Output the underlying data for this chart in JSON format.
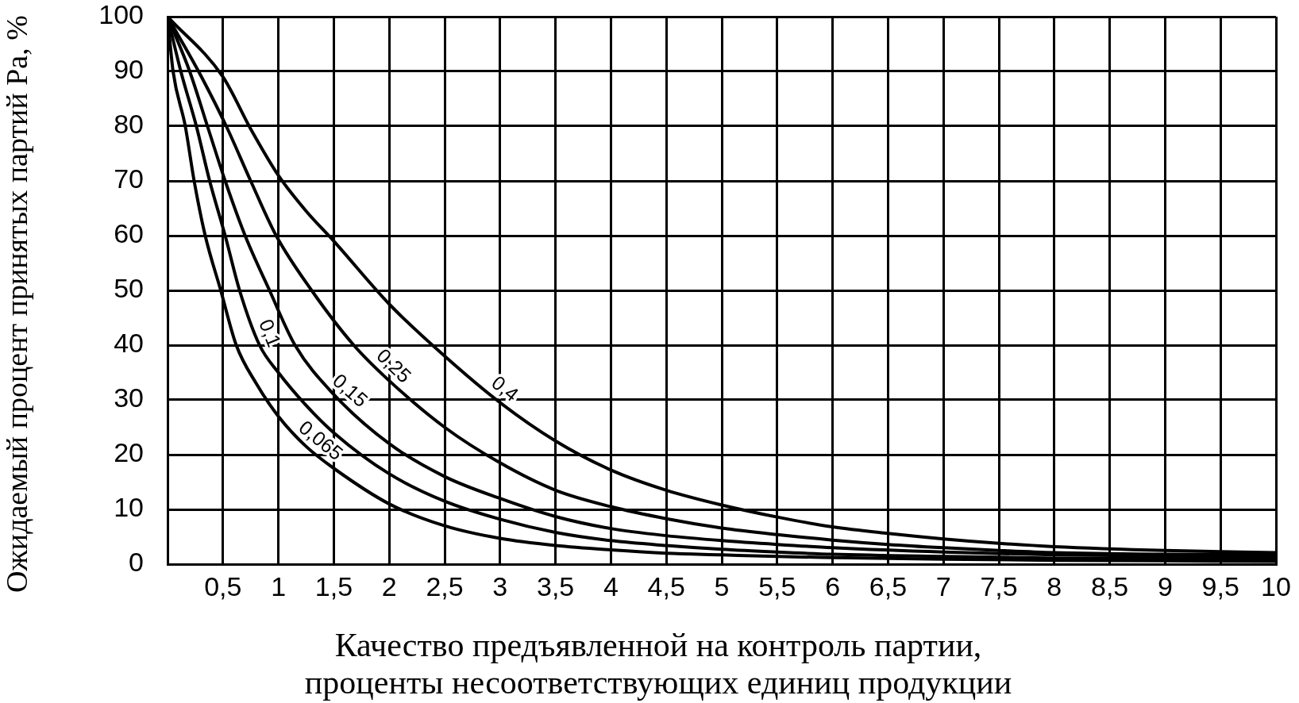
{
  "chart_data": {
    "type": "line",
    "xlabel": "Качество предъявленной на контроль партии,\nпроценты несоответствующих единиц продукции",
    "ylabel": "Ожидаемый процент принятых партий Pa, %",
    "xlim": [
      0,
      10
    ],
    "xticks": [
      {
        "value": 0.5,
        "label": "0,5"
      },
      1,
      {
        "value": 1.5,
        "label": "1,5"
      },
      2,
      {
        "value": 2.5,
        "label": "2,5"
      },
      3,
      {
        "value": 3.5,
        "label": "3,5"
      },
      4,
      {
        "value": 4.5,
        "label": "4,5"
      },
      5,
      {
        "value": 5.5,
        "label": "5,5"
      },
      6,
      {
        "value": 6.5,
        "label": "6,5"
      },
      7,
      {
        "value": 7.5,
        "label": "7,5"
      },
      8,
      {
        "value": 8.5,
        "label": "8,5"
      },
      9,
      {
        "value": 9.5,
        "label": "9,5"
      },
      10
    ],
    "ylim": [
      0,
      100
    ],
    "yticks": [
      0,
      10,
      20,
      30,
      40,
      50,
      60,
      70,
      80,
      90,
      100
    ],
    "grid": true,
    "legend": false,
    "marker": "none",
    "line_style": "solid",
    "series": [
      {
        "name": "0,065",
        "color": "#000000",
        "x": [
          0,
          0.05,
          0.16,
          0.24,
          0.34,
          0.48,
          0.62,
          0.8,
          1,
          1.25,
          1.5,
          2,
          2.5,
          3,
          3.5,
          4,
          4.5,
          5,
          5.5,
          6,
          7,
          8,
          9,
          10
        ],
        "values": [
          100,
          90,
          80,
          70,
          60,
          50,
          40,
          33,
          27,
          21.5,
          17.5,
          11,
          7,
          4.7,
          3.4,
          2.6,
          2,
          1.7,
          1.4,
          1.2,
          0.9,
          0.7,
          0.6,
          0.5
        ]
      },
      {
        "name": "0,1",
        "color": "#000000",
        "x": [
          0,
          0.12,
          0.26,
          0.38,
          0.52,
          0.65,
          0.83,
          1,
          1.25,
          1.5,
          2,
          2.5,
          3,
          3.5,
          4,
          4.5,
          5,
          5.5,
          6,
          7,
          8,
          9,
          10
        ],
        "values": [
          100,
          90,
          80,
          70,
          60,
          50,
          40,
          35,
          29,
          24,
          16.5,
          11.5,
          8.2,
          5.8,
          4.3,
          3.4,
          2.7,
          2.2,
          1.8,
          1.4,
          1.1,
          1,
          0.9
        ]
      },
      {
        "name": "0,15",
        "color": "#000000",
        "x": [
          0,
          0.2,
          0.36,
          0.52,
          0.7,
          0.92,
          1.15,
          1.5,
          2,
          2.5,
          3,
          3.5,
          4,
          4.5,
          5,
          5.5,
          6,
          7,
          8,
          9,
          10
        ],
        "values": [
          100,
          90,
          80,
          70,
          60,
          50,
          40,
          31,
          22,
          16,
          12,
          8.7,
          6.5,
          5.2,
          4.3,
          3.6,
          3,
          2.2,
          1.7,
          1.5,
          1.3
        ]
      },
      {
        "name": "0,25",
        "color": "#000000",
        "x": [
          0,
          0.28,
          0.53,
          0.75,
          0.98,
          1.3,
          1.68,
          2,
          2.5,
          3,
          3.5,
          4,
          4.5,
          5,
          5.5,
          6,
          6.5,
          7,
          7.5,
          8,
          9,
          10
        ],
        "values": [
          100,
          90,
          80,
          70,
          60,
          50,
          40,
          33.5,
          25,
          18.5,
          13.5,
          10.5,
          8.3,
          6.6,
          5.4,
          4.4,
          3.6,
          3,
          2.5,
          2.1,
          1.8,
          1.7
        ]
      },
      {
        "name": "0,4",
        "color": "#000000",
        "x": [
          0,
          0.5,
          0.75,
          1,
          1.25,
          1.5,
          2,
          2.5,
          3,
          3.5,
          4,
          4.5,
          5,
          5.5,
          6,
          6.5,
          7,
          7.5,
          8,
          9,
          10
        ],
        "values": [
          100,
          89,
          79.5,
          71,
          64.5,
          59,
          47.5,
          38,
          29.5,
          22.5,
          17.2,
          13.5,
          10.8,
          8.6,
          6.8,
          5.6,
          4.6,
          3.8,
          3.2,
          2.5,
          2.1
        ]
      }
    ]
  }
}
